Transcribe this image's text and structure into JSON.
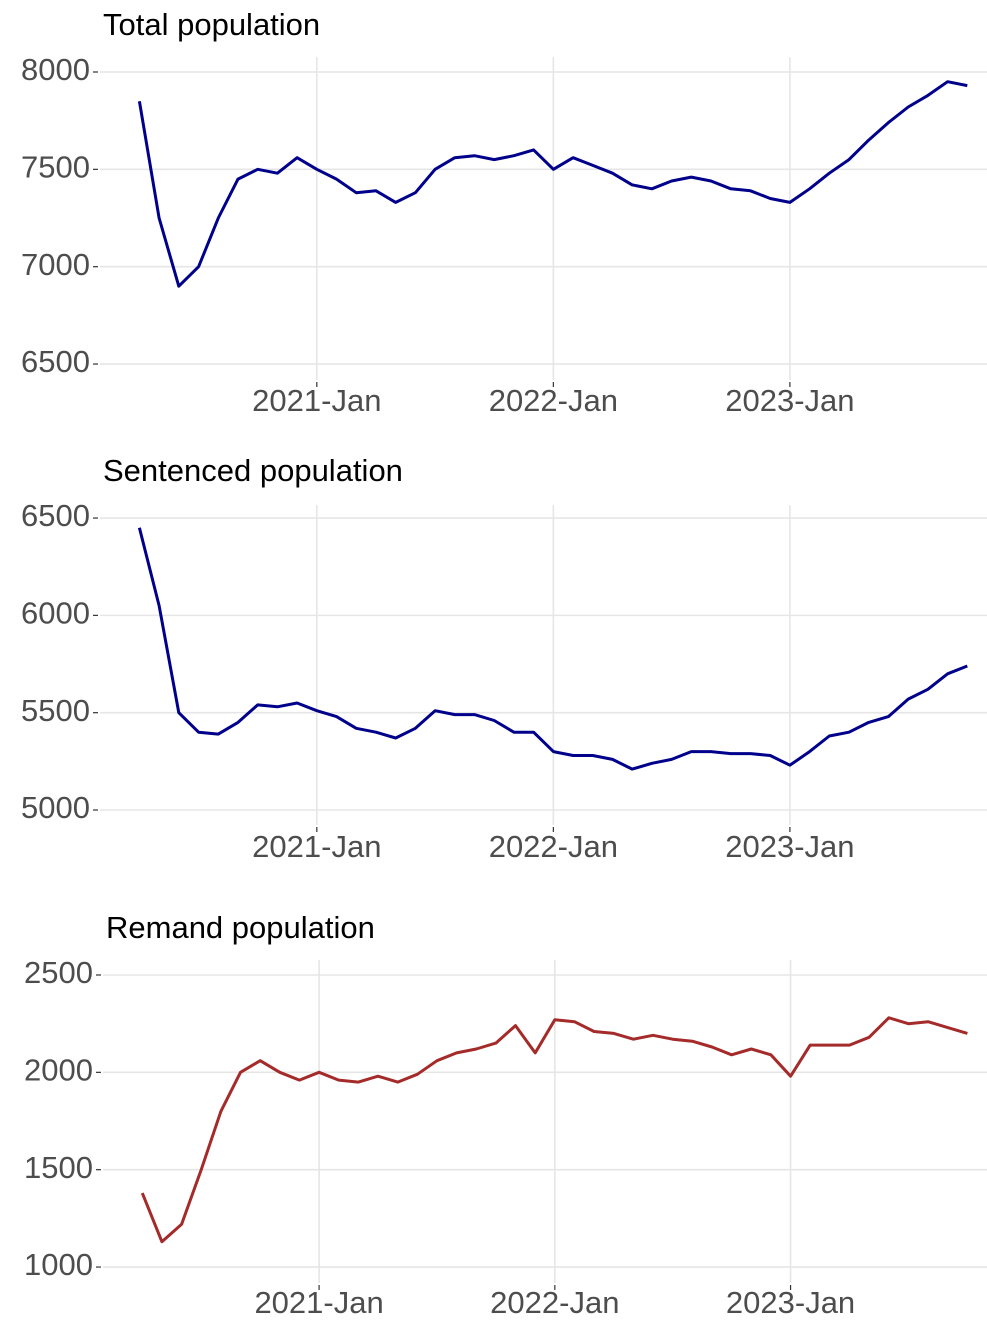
{
  "chart_data": [
    {
      "type": "line",
      "title": "Total population",
      "x": [
        "2020-04",
        "2020-05",
        "2020-06",
        "2020-07",
        "2020-08",
        "2020-09",
        "2020-10",
        "2020-11",
        "2020-12",
        "2021-01",
        "2021-02",
        "2021-03",
        "2021-04",
        "2021-05",
        "2021-06",
        "2021-07",
        "2021-08",
        "2021-09",
        "2021-10",
        "2021-11",
        "2021-12",
        "2022-01",
        "2022-02",
        "2022-03",
        "2022-04",
        "2022-05",
        "2022-06",
        "2022-07",
        "2022-08",
        "2022-09",
        "2022-10",
        "2022-11",
        "2022-12",
        "2023-01",
        "2023-02",
        "2023-03",
        "2023-04",
        "2023-05",
        "2023-06",
        "2023-07",
        "2023-08",
        "2023-09",
        "2023-10"
      ],
      "series": [
        {
          "color": "#00008b",
          "values": [
            7850,
            7250,
            6900,
            7000,
            7250,
            7450,
            7500,
            7480,
            7560,
            7500,
            7450,
            7380,
            7390,
            7330,
            7380,
            7500,
            7560,
            7570,
            7550,
            7570,
            7600,
            7500,
            7560,
            7520,
            7480,
            7420,
            7400,
            7440,
            7460,
            7440,
            7400,
            7390,
            7350,
            7330,
            7400,
            7480,
            7550,
            7650,
            7740,
            7820,
            7880,
            7950,
            7930
          ]
        }
      ],
      "xlim": [
        "2020-02",
        "2023-11"
      ],
      "xticks": [
        {
          "value": "2021-01",
          "label": "2021-Jan"
        },
        {
          "value": "2022-01",
          "label": "2022-Jan"
        },
        {
          "value": "2023-01",
          "label": "2023-Jan"
        }
      ],
      "ylim": [
        6418,
        8077
      ],
      "yticks": [
        6500,
        7000,
        7500,
        8000
      ],
      "grid": true
    },
    {
      "type": "line",
      "title": "Sentenced population",
      "x": [
        "2020-04",
        "2020-05",
        "2020-06",
        "2020-07",
        "2020-08",
        "2020-09",
        "2020-10",
        "2020-11",
        "2020-12",
        "2021-01",
        "2021-02",
        "2021-03",
        "2021-04",
        "2021-05",
        "2021-06",
        "2021-07",
        "2021-08",
        "2021-09",
        "2021-10",
        "2021-11",
        "2021-12",
        "2022-01",
        "2022-02",
        "2022-03",
        "2022-04",
        "2022-05",
        "2022-06",
        "2022-07",
        "2022-08",
        "2022-09",
        "2022-10",
        "2022-11",
        "2022-12",
        "2023-01",
        "2023-02",
        "2023-03",
        "2023-04",
        "2023-05",
        "2023-06",
        "2023-07",
        "2023-08",
        "2023-09",
        "2023-10"
      ],
      "series": [
        {
          "color": "#00008b",
          "values": [
            6450,
            6050,
            5500,
            5400,
            5390,
            5450,
            5540,
            5530,
            5550,
            5510,
            5480,
            5420,
            5400,
            5370,
            5420,
            5510,
            5490,
            5490,
            5460,
            5400,
            5400,
            5300,
            5280,
            5280,
            5260,
            5210,
            5240,
            5260,
            5300,
            5300,
            5290,
            5290,
            5280,
            5230,
            5300,
            5380,
            5400,
            5450,
            5480,
            5570,
            5620,
            5700,
            5740
          ]
        }
      ],
      "xlim": [
        "2020-02",
        "2023-11"
      ],
      "xticks": [
        {
          "value": "2021-01",
          "label": "2021-Jan"
        },
        {
          "value": "2022-01",
          "label": "2022-Jan"
        },
        {
          "value": "2023-01",
          "label": "2023-Jan"
        }
      ],
      "ylim": [
        4923,
        6567
      ],
      "yticks": [
        5000,
        5500,
        6000,
        6500
      ],
      "grid": true
    },
    {
      "type": "line",
      "title": "Remand population",
      "x": [
        "2020-04",
        "2020-05",
        "2020-06",
        "2020-07",
        "2020-08",
        "2020-09",
        "2020-10",
        "2020-11",
        "2020-12",
        "2021-01",
        "2021-02",
        "2021-03",
        "2021-04",
        "2021-05",
        "2021-06",
        "2021-07",
        "2021-08",
        "2021-09",
        "2021-10",
        "2021-11",
        "2021-12",
        "2022-01",
        "2022-02",
        "2022-03",
        "2022-04",
        "2022-05",
        "2022-06",
        "2022-07",
        "2022-08",
        "2022-09",
        "2022-10",
        "2022-11",
        "2022-12",
        "2023-01",
        "2023-02",
        "2023-03",
        "2023-04",
        "2023-05",
        "2023-06",
        "2023-07",
        "2023-08",
        "2023-09",
        "2023-10"
      ],
      "series": [
        {
          "color": "#a52a2a",
          "values": [
            1380,
            1130,
            1220,
            1500,
            1800,
            2000,
            2060,
            2000,
            1960,
            2000,
            1960,
            1950,
            1980,
            1950,
            1990,
            2060,
            2100,
            2120,
            2150,
            2240,
            2100,
            2270,
            2260,
            2210,
            2200,
            2170,
            2190,
            2170,
            2160,
            2130,
            2090,
            2120,
            2090,
            1980,
            2140,
            2140,
            2140,
            2180,
            2280,
            2250,
            2260,
            2230,
            2200
          ]
        }
      ],
      "xlim": [
        "2020-02",
        "2023-11"
      ],
      "xticks": [
        {
          "value": "2021-01",
          "label": "2021-Jan"
        },
        {
          "value": "2022-01",
          "label": "2022-Jan"
        },
        {
          "value": "2023-01",
          "label": "2023-Jan"
        }
      ],
      "ylim": [
        918,
        2577
      ],
      "yticks": [
        1000,
        1500,
        2000,
        2500
      ],
      "grid": true
    }
  ]
}
